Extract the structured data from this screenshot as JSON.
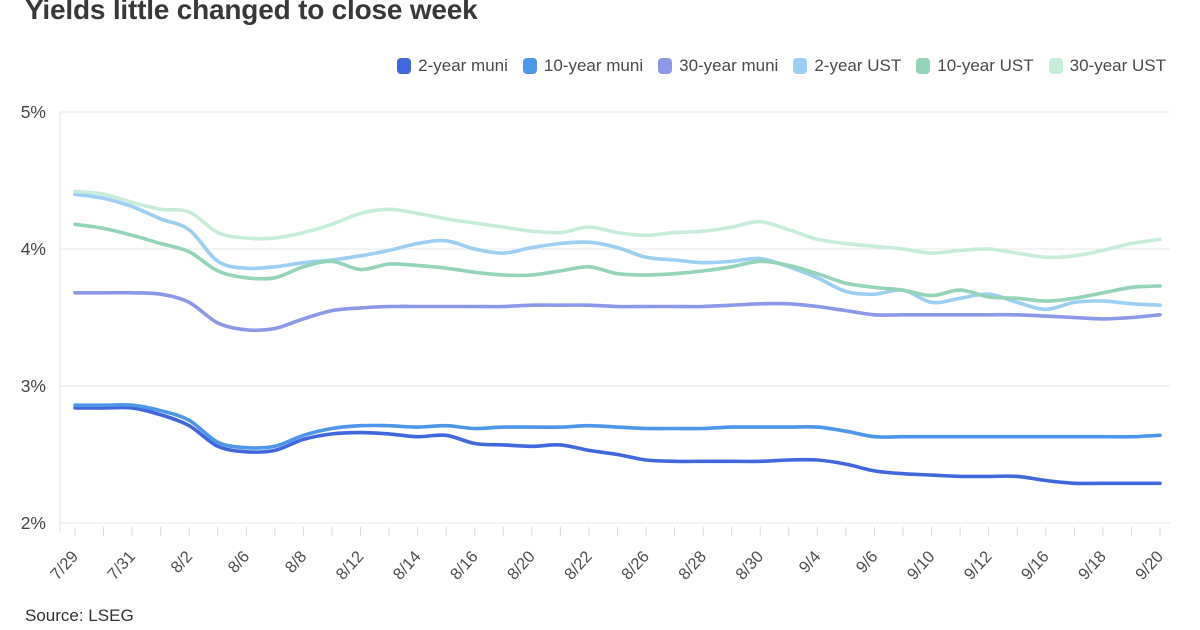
{
  "title": "Yields little changed to close week",
  "source": "Source: LSEG",
  "colors": {
    "grid": "#e7e7e7",
    "axis": "#e0e0e0",
    "tick": "#d9d9d9",
    "y_label": "#454545",
    "x_label": "#4f4f4f"
  },
  "chart_data": {
    "type": "line",
    "title": "Yields little changed to close week",
    "xlabel": "",
    "ylabel": "",
    "ylim": [
      2,
      5
    ],
    "grid": "horizontal",
    "legend_position": "top",
    "yticks": [
      {
        "v": 5,
        "label": "5%"
      },
      {
        "v": 4,
        "label": "4%"
      },
      {
        "v": 3,
        "label": "3%"
      },
      {
        "v": 2,
        "label": "2%"
      }
    ],
    "x": [
      "7/29",
      "7/30",
      "7/31",
      "8/1",
      "8/2",
      "8/5",
      "8/6",
      "8/7",
      "8/8",
      "8/9",
      "8/12",
      "8/13",
      "8/14",
      "8/15",
      "8/16",
      "8/19",
      "8/20",
      "8/21",
      "8/22",
      "8/23",
      "8/26",
      "8/27",
      "8/28",
      "8/29",
      "8/30",
      "9/3",
      "9/4",
      "9/5",
      "9/6",
      "9/9",
      "9/10",
      "9/11",
      "9/12",
      "9/13",
      "9/16",
      "9/17",
      "9/18",
      "9/19",
      "9/20"
    ],
    "x_labels_visible": [
      "7/29",
      "7/31",
      "8/2",
      "8/6",
      "8/8",
      "8/12",
      "8/14",
      "8/16",
      "8/20",
      "8/22",
      "8/26",
      "8/28",
      "8/30",
      "9/4",
      "9/6",
      "9/10",
      "9/12",
      "9/16",
      "9/18",
      "9/20"
    ],
    "x_label_every": 2,
    "series": [
      {
        "name": "2-year muni",
        "color": "#4267dc",
        "values": [
          2.84,
          2.84,
          2.84,
          2.79,
          2.71,
          2.56,
          2.52,
          2.53,
          2.61,
          2.65,
          2.66,
          2.65,
          2.63,
          2.64,
          2.58,
          2.57,
          2.56,
          2.57,
          2.53,
          2.5,
          2.46,
          2.45,
          2.45,
          2.45,
          2.45,
          2.46,
          2.46,
          2.43,
          2.38,
          2.36,
          2.35,
          2.34,
          2.34,
          2.34,
          2.31,
          2.29,
          2.29,
          2.29,
          2.29
        ]
      },
      {
        "name": "10-year muni",
        "color": "#4d96e9",
        "values": [
          2.86,
          2.86,
          2.86,
          2.82,
          2.75,
          2.59,
          2.55,
          2.56,
          2.64,
          2.69,
          2.71,
          2.71,
          2.7,
          2.71,
          2.69,
          2.7,
          2.7,
          2.7,
          2.71,
          2.7,
          2.69,
          2.69,
          2.69,
          2.7,
          2.7,
          2.7,
          2.7,
          2.67,
          2.63,
          2.63,
          2.63,
          2.63,
          2.63,
          2.63,
          2.63,
          2.63,
          2.63,
          2.63,
          2.64
        ]
      },
      {
        "name": "30-year muni",
        "color": "#8c99e8",
        "values": [
          3.68,
          3.68,
          3.68,
          3.67,
          3.61,
          3.46,
          3.41,
          3.42,
          3.49,
          3.55,
          3.57,
          3.58,
          3.58,
          3.58,
          3.58,
          3.58,
          3.59,
          3.59,
          3.59,
          3.58,
          3.58,
          3.58,
          3.58,
          3.59,
          3.6,
          3.6,
          3.58,
          3.55,
          3.52,
          3.52,
          3.52,
          3.52,
          3.52,
          3.52,
          3.51,
          3.5,
          3.49,
          3.5,
          3.52
        ]
      },
      {
        "name": "2-year UST",
        "color": "#9ccff2",
        "values": [
          4.4,
          4.37,
          4.31,
          4.22,
          4.14,
          3.91,
          3.86,
          3.87,
          3.9,
          3.92,
          3.95,
          3.99,
          4.04,
          4.06,
          4.0,
          3.97,
          4.01,
          4.04,
          4.05,
          4.01,
          3.94,
          3.92,
          3.9,
          3.91,
          3.93,
          3.87,
          3.79,
          3.69,
          3.67,
          3.7,
          3.61,
          3.64,
          3.67,
          3.61,
          3.56,
          3.61,
          3.62,
          3.6,
          3.59
        ]
      },
      {
        "name": "10-year UST",
        "color": "#94d4b8",
        "values": [
          4.18,
          4.15,
          4.1,
          4.04,
          3.98,
          3.84,
          3.79,
          3.79,
          3.87,
          3.91,
          3.85,
          3.89,
          3.88,
          3.86,
          3.83,
          3.81,
          3.81,
          3.84,
          3.87,
          3.82,
          3.81,
          3.82,
          3.84,
          3.87,
          3.91,
          3.88,
          3.82,
          3.75,
          3.72,
          3.7,
          3.66,
          3.7,
          3.65,
          3.64,
          3.62,
          3.64,
          3.68,
          3.72,
          3.73
        ]
      },
      {
        "name": "30-year UST",
        "color": "#c5edd9",
        "values": [
          4.42,
          4.4,
          4.34,
          4.29,
          4.27,
          4.12,
          4.08,
          4.08,
          4.12,
          4.18,
          4.26,
          4.29,
          4.26,
          4.22,
          4.19,
          4.16,
          4.13,
          4.12,
          4.16,
          4.12,
          4.1,
          4.12,
          4.13,
          4.16,
          4.2,
          4.14,
          4.07,
          4.04,
          4.02,
          4.0,
          3.97,
          3.99,
          4.0,
          3.97,
          3.94,
          3.95,
          3.99,
          4.04,
          4.07
        ]
      }
    ]
  }
}
